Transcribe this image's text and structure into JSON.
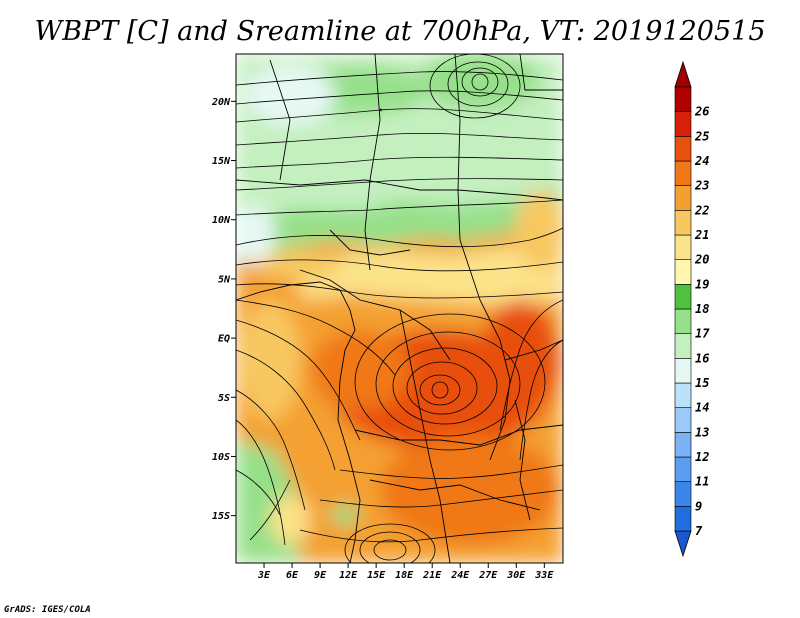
{
  "title": "WBPT [C] and Sreamline at 700hPa, VT: 2019120515",
  "credit": "GrADS: IGES/COLA",
  "map": {
    "lon_range": [
      0,
      35
    ],
    "lat_range": [
      -19,
      24
    ],
    "lat_ticks": [
      {
        "value": 20,
        "label": "20N"
      },
      {
        "value": 15,
        "label": "15N"
      },
      {
        "value": 10,
        "label": "10N"
      },
      {
        "value": 5,
        "label": "5N"
      },
      {
        "value": 0,
        "label": "EQ"
      },
      {
        "value": -5,
        "label": "5S"
      },
      {
        "value": -10,
        "label": "10S"
      },
      {
        "value": -15,
        "label": "15S"
      }
    ],
    "lon_ticks": [
      {
        "value": 3,
        "label": "3E"
      },
      {
        "value": 6,
        "label": "6E"
      },
      {
        "value": 9,
        "label": "9E"
      },
      {
        "value": 12,
        "label": "12E"
      },
      {
        "value": 15,
        "label": "15E"
      },
      {
        "value": 18,
        "label": "18E"
      },
      {
        "value": 21,
        "label": "21E"
      },
      {
        "value": 24,
        "label": "24E"
      },
      {
        "value": 27,
        "label": "27E"
      },
      {
        "value": 30,
        "label": "30E"
      },
      {
        "value": 33,
        "label": "33E"
      }
    ]
  },
  "colorbar": {
    "labels": [
      "7",
      "9",
      "11",
      "12",
      "13",
      "14",
      "15",
      "16",
      "17",
      "18",
      "19",
      "20",
      "21",
      "22",
      "23",
      "24",
      "25",
      "26"
    ],
    "colors": [
      "#1e6ee0",
      "#3a86ea",
      "#5a9ef0",
      "#7ab2f4",
      "#9ccaf8",
      "#bde0fb",
      "#e6f8f4",
      "#c4f0c0",
      "#96e08a",
      "#50c040",
      "#fff6b0",
      "#fbe38a",
      "#f8c860",
      "#f4a030",
      "#f07818",
      "#e85010",
      "#d82008",
      "#b00000"
    ],
    "below_color": "#1e56d0",
    "above_color": "#a00000"
  }
}
